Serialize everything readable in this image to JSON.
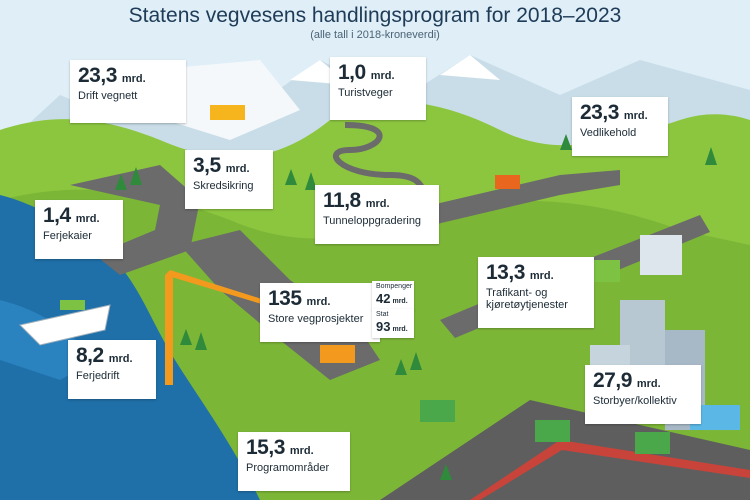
{
  "header": {
    "title": "Statens vegvesens handlingsprogram for 2018–2023",
    "subtitle": "(alle tall i 2018-kroneverdi)"
  },
  "unit": "mrd.",
  "cards": {
    "drift": {
      "amount": "23,3",
      "label": "Drift vegnett"
    },
    "turistveger": {
      "amount": "1,0",
      "label": "Turistveger"
    },
    "vedlikehold": {
      "amount": "23,3",
      "label": "Vedlikehold"
    },
    "skredsikring": {
      "amount": "3,5",
      "label": "Skredsikring"
    },
    "tunnel": {
      "amount": "11,8",
      "label": "Tunneloppgradering"
    },
    "ferjekaier": {
      "amount": "1,4",
      "label": "Ferjekaier"
    },
    "trafikant": {
      "amount": "13,3",
      "label_line1": "Trafikant- og",
      "label_line2": "kjøretøytjenester"
    },
    "store": {
      "amount": "135",
      "label": "Store vegprosjekter"
    },
    "ferjedrift": {
      "amount": "8,2",
      "label": "Ferjedrift"
    },
    "storbyer": {
      "amount": "27,9",
      "label": "Storbyer/kollektiv"
    },
    "programomrader": {
      "amount": "15,3",
      "label": "Programområder"
    }
  },
  "store_breakdown": {
    "bompenger": {
      "label": "Bompenger",
      "amount": "42"
    },
    "stat": {
      "label": "Stat",
      "amount": "93"
    }
  },
  "colors": {
    "sky": "#dfeef7",
    "sea": "#1f6fa8",
    "grass": "#8cc63f",
    "road": "#6b6b6b",
    "bike_lane": "#c8443a",
    "text": "#1c2b36"
  }
}
